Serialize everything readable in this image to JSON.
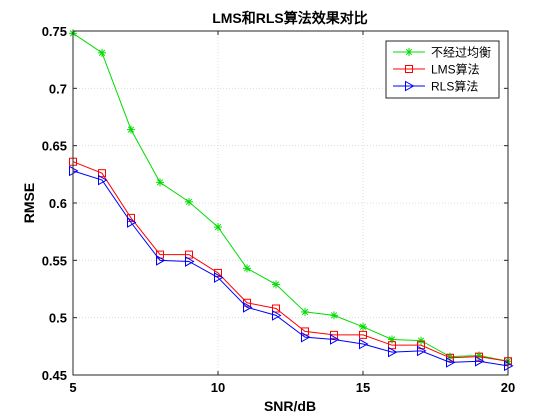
{
  "chart_data": {
    "type": "line",
    "title": "LMS和RLS算法效果对比",
    "xlabel": "SNR/dB",
    "ylabel": "RMSE",
    "xlim": [
      5,
      20
    ],
    "ylim": [
      0.45,
      0.75
    ],
    "xticks": [
      5,
      10,
      15,
      20
    ],
    "xtick_labels": [
      "5",
      "10",
      "15",
      "20"
    ],
    "yticks": [
      0.45,
      0.5,
      0.55,
      0.6,
      0.65,
      0.7,
      0.75
    ],
    "ytick_labels": [
      "0.45",
      "0.5",
      "0.55",
      "0.6",
      "0.65",
      "0.7",
      "0.75"
    ],
    "grid": true,
    "legend_position": "top-right",
    "x": [
      5,
      6,
      7,
      8,
      9,
      10,
      11,
      12,
      13,
      14,
      15,
      16,
      17,
      18,
      19,
      20
    ],
    "series": [
      {
        "name": "不经过均衡",
        "color": "#00dd00",
        "marker": "asterisk",
        "values": [
          0.748,
          0.731,
          0.664,
          0.618,
          0.601,
          0.579,
          0.543,
          0.529,
          0.505,
          0.502,
          0.492,
          0.481,
          0.48,
          0.466,
          0.467,
          0.462
        ]
      },
      {
        "name": "LMS算法",
        "color": "#ff0000",
        "marker": "square",
        "values": [
          0.636,
          0.626,
          0.587,
          0.555,
          0.555,
          0.539,
          0.513,
          0.508,
          0.488,
          0.485,
          0.485,
          0.476,
          0.476,
          0.465,
          0.466,
          0.462
        ]
      },
      {
        "name": "RLS算法",
        "color": "#0000ff",
        "marker": "triangle-right",
        "values": [
          0.628,
          0.62,
          0.583,
          0.55,
          0.549,
          0.535,
          0.509,
          0.502,
          0.483,
          0.481,
          0.477,
          0.47,
          0.471,
          0.461,
          0.462,
          0.458
        ]
      }
    ]
  }
}
